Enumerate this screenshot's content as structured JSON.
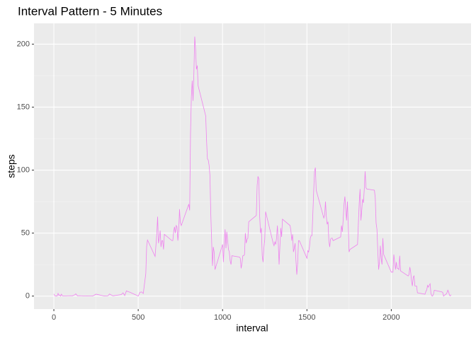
{
  "chart_data": {
    "type": "line",
    "title": "Interval Pattern - 5 Minutes",
    "x_label": "interval",
    "y_label": "steps",
    "xlim": [
      -117.75,
      2472.75
    ],
    "xticks": [
      0,
      500,
      1000,
      1500,
      2000
    ],
    "ylim": [
      -10.3,
      216.5
    ],
    "yticks": [
      0,
      50,
      100,
      150,
      200
    ],
    "grid": true,
    "series": [
      {
        "name": "steps",
        "color": "#ee82ee",
        "x": [
          0,
          5,
          10,
          15,
          20,
          25,
          30,
          35,
          40,
          45,
          50,
          55,
          100,
          110,
          125,
          130,
          140,
          150,
          200,
          230,
          250,
          300,
          320,
          330,
          350,
          400,
          410,
          420,
          430,
          440,
          450,
          500,
          510,
          520,
          530,
          545,
          550,
          555,
          600,
          610,
          615,
          620,
          625,
          630,
          635,
          640,
          645,
          650,
          655,
          700,
          705,
          710,
          715,
          720,
          725,
          730,
          735,
          740,
          745,
          750,
          755,
          800,
          805,
          810,
          815,
          820,
          825,
          830,
          835,
          840,
          845,
          850,
          855,
          900,
          905,
          910,
          915,
          920,
          925,
          930,
          935,
          940,
          945,
          950,
          955,
          1000,
          1005,
          1010,
          1015,
          1020,
          1025,
          1030,
          1035,
          1040,
          1045,
          1050,
          1055,
          1100,
          1105,
          1110,
          1115,
          1120,
          1125,
          1130,
          1135,
          1140,
          1145,
          1150,
          1155,
          1200,
          1205,
          1210,
          1215,
          1220,
          1225,
          1230,
          1235,
          1240,
          1245,
          1250,
          1255,
          1300,
          1305,
          1310,
          1315,
          1320,
          1325,
          1330,
          1335,
          1340,
          1345,
          1350,
          1355,
          1400,
          1405,
          1410,
          1415,
          1420,
          1425,
          1430,
          1435,
          1440,
          1445,
          1450,
          1455,
          1500,
          1505,
          1510,
          1515,
          1520,
          1525,
          1530,
          1535,
          1540,
          1545,
          1550,
          1555,
          1600,
          1605,
          1610,
          1615,
          1620,
          1625,
          1630,
          1635,
          1640,
          1645,
          1650,
          1655,
          1700,
          1705,
          1710,
          1715,
          1720,
          1725,
          1730,
          1735,
          1740,
          1745,
          1750,
          1755,
          1800,
          1805,
          1810,
          1815,
          1820,
          1825,
          1830,
          1835,
          1840,
          1845,
          1850,
          1855,
          1900,
          1905,
          1910,
          1915,
          1920,
          1925,
          1930,
          1935,
          1940,
          1945,
          1950,
          1955,
          2000,
          2005,
          2010,
          2015,
          2020,
          2025,
          2030,
          2035,
          2040,
          2045,
          2050,
          2055,
          2100,
          2105,
          2110,
          2115,
          2120,
          2125,
          2130,
          2135,
          2140,
          2145,
          2150,
          2155,
          2200,
          2205,
          2210,
          2215,
          2220,
          2225,
          2230,
          2235,
          2240,
          2245,
          2250,
          2255,
          2300,
          2305,
          2310,
          2315,
          2320,
          2325,
          2330,
          2335,
          2340,
          2345,
          2350,
          2355
        ],
        "values": [
          1.7,
          0.3,
          0.1,
          0.2,
          0.1,
          2.1,
          0.5,
          0.9,
          0,
          1.5,
          0.3,
          0.1,
          0.3,
          0.2,
          1.1,
          1.8,
          0.2,
          0.3,
          0,
          0,
          1.5,
          0,
          0.2,
          1.6,
          0.2,
          1.2,
          2.6,
          0.4,
          4.1,
          3.5,
          3.1,
          0,
          3,
          3.3,
          2.1,
          18,
          39.5,
          44.5,
          31.5,
          49,
          63,
          42,
          46,
          52,
          39,
          44,
          44,
          37,
          49,
          44,
          44,
          51,
          55,
          50,
          56,
          55,
          44,
          52,
          69,
          58,
          56,
          73,
          68,
          129,
          158,
          171,
          155,
          177,
          206,
          196,
          180,
          183,
          167,
          143,
          124,
          109,
          108,
          104,
          96,
          66,
          45,
          24,
          39,
          35,
          21,
          41,
          27,
          42,
          53,
          38,
          51,
          44,
          37,
          35,
          28,
          25,
          32,
          31,
          30,
          22,
          26,
          32,
          32,
          33,
          50,
          42,
          45,
          46,
          59,
          64,
          88,
          95,
          93,
          63,
          50,
          54,
          32,
          27,
          38,
          45,
          67,
          42,
          40,
          43,
          41,
          46,
          56,
          43,
          25,
          40,
          54,
          47,
          61,
          56,
          52,
          44,
          49,
          35,
          38,
          42,
          28,
          17,
          26,
          44,
          44,
          30,
          36,
          35,
          39,
          46,
          48,
          48,
          65,
          83,
          99,
          102,
          84,
          62,
          64,
          75,
          63,
          57,
          59,
          44,
          39,
          45,
          46,
          46,
          44,
          47,
          56,
          51,
          61,
          73,
          79,
          69,
          60,
          75,
          57,
          35,
          37,
          41,
          58,
          74,
          85,
          60,
          68,
          77,
          74,
          85,
          99,
          86,
          85,
          84,
          78,
          58,
          53,
          36,
          21,
          27,
          40,
          30,
          25,
          46,
          33,
          19,
          19,
          19,
          33,
          27,
          21,
          27,
          22,
          22,
          21,
          32,
          20,
          16,
          17,
          23,
          19,
          12,
          8,
          15,
          16,
          8,
          8,
          8,
          2.6,
          1.5,
          3.7,
          4.8,
          8.5,
          7.1,
          8.7,
          9.8,
          2.2,
          0.3,
          0.1,
          1.6,
          4.6,
          3.3,
          2.8,
          0,
          0.8,
          1,
          1.6,
          2.6,
          4.7,
          3.3,
          0.6,
          0.2,
          1.1
        ]
      }
    ]
  }
}
